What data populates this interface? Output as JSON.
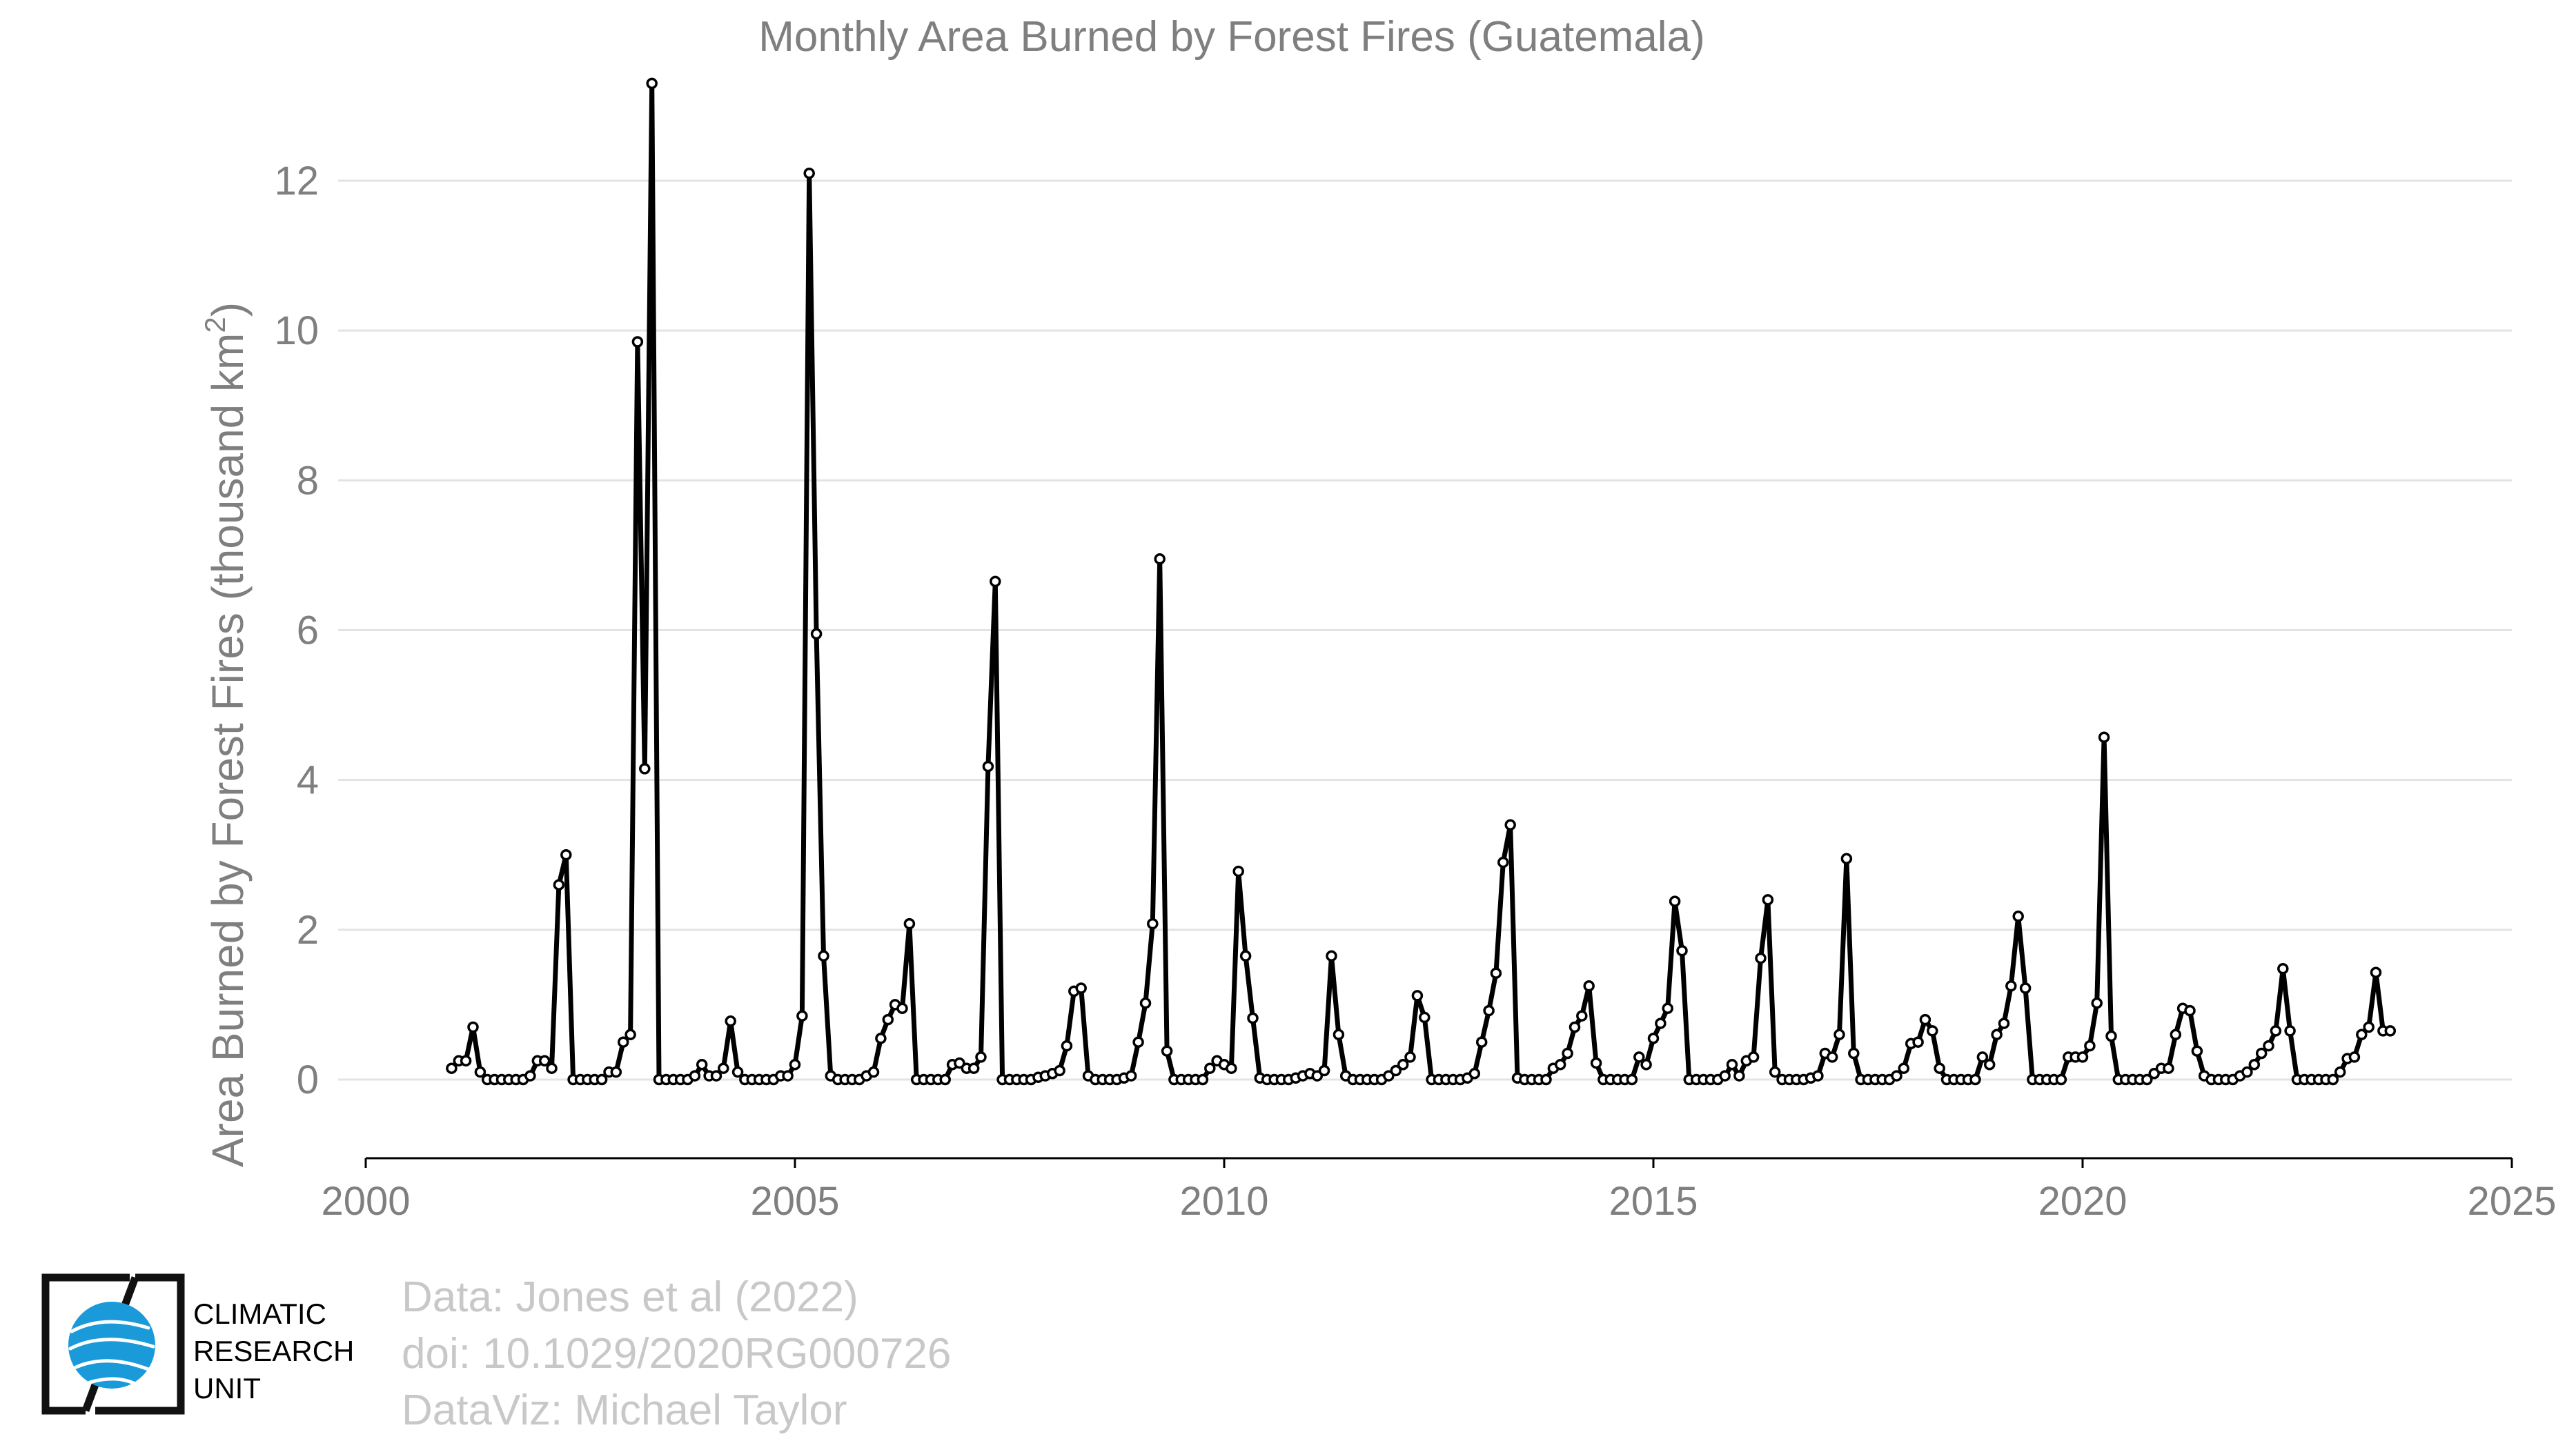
{
  "chart_data": {
    "type": "line",
    "title": "Monthly Area Burned by Forest Fires (Guatemala)",
    "ylabel": "Area Burned by Forest Fires (thousand km",
    "ylabel_superscript": "2",
    "ylabel_close": ")",
    "xlim": [
      2000,
      2025
    ],
    "ylim": [
      -1.05,
      13.4
    ],
    "xticks": [
      2000,
      2005,
      2010,
      2015,
      2020,
      2025
    ],
    "yticks": [
      0,
      2,
      4,
      6,
      8,
      10,
      12
    ],
    "grid": "horizontal",
    "series_color": "#000000",
    "marker_fill": "#ffffff",
    "x_start": "2001-01",
    "x_step": "monthly",
    "values": [
      0.15,
      0.25,
      0.25,
      0.7,
      0.1,
      0.0,
      0.0,
      0.0,
      0.0,
      0.0,
      0.0,
      0.05,
      0.25,
      0.25,
      0.15,
      2.6,
      3.0,
      0.0,
      0.0,
      0.0,
      0.0,
      0.0,
      0.1,
      0.1,
      0.5,
      0.6,
      9.85,
      4.15,
      13.3,
      0.0,
      0.0,
      0.0,
      0.0,
      0.0,
      0.05,
      0.2,
      0.05,
      0.05,
      0.15,
      0.78,
      0.1,
      0.0,
      0.0,
      0.0,
      0.0,
      0.0,
      0.05,
      0.05,
      0.2,
      0.85,
      12.1,
      5.95,
      1.65,
      0.05,
      0.0,
      0.0,
      0.0,
      0.0,
      0.05,
      0.1,
      0.55,
      0.8,
      1.0,
      0.95,
      2.08,
      0.0,
      0.0,
      0.0,
      0.0,
      0.0,
      0.2,
      0.22,
      0.15,
      0.15,
      0.3,
      4.18,
      6.65,
      0.0,
      0.0,
      0.0,
      0.0,
      0.0,
      0.03,
      0.05,
      0.08,
      0.12,
      0.45,
      1.18,
      1.22,
      0.05,
      0.0,
      0.0,
      0.0,
      0.0,
      0.02,
      0.05,
      0.5,
      1.02,
      2.08,
      6.95,
      0.38,
      0.0,
      0.0,
      0.0,
      0.0,
      0.0,
      0.15,
      0.25,
      0.2,
      0.15,
      2.78,
      1.65,
      0.82,
      0.02,
      0.0,
      0.0,
      0.0,
      0.0,
      0.02,
      0.05,
      0.08,
      0.05,
      0.12,
      1.65,
      0.6,
      0.05,
      0.0,
      0.0,
      0.0,
      0.0,
      0.0,
      0.05,
      0.12,
      0.2,
      0.3,
      1.12,
      0.83,
      0.0,
      0.0,
      0.0,
      0.0,
      0.0,
      0.02,
      0.08,
      0.5,
      0.92,
      1.42,
      2.9,
      3.4,
      0.02,
      0.0,
      0.0,
      0.0,
      0.0,
      0.15,
      0.2,
      0.35,
      0.7,
      0.85,
      1.25,
      0.22,
      0.0,
      0.0,
      0.0,
      0.0,
      0.0,
      0.3,
      0.2,
      0.55,
      0.75,
      0.95,
      2.38,
      1.72,
      0.0,
      0.0,
      0.0,
      0.0,
      0.0,
      0.05,
      0.2,
      0.05,
      0.25,
      0.3,
      1.62,
      2.4,
      0.1,
      0.0,
      0.0,
      0.0,
      0.0,
      0.02,
      0.05,
      0.35,
      0.3,
      0.6,
      2.95,
      0.35,
      0.0,
      0.0,
      0.0,
      0.0,
      0.0,
      0.05,
      0.15,
      0.48,
      0.5,
      0.8,
      0.65,
      0.15,
      0.0,
      0.0,
      0.0,
      0.0,
      0.0,
      0.3,
      0.2,
      0.6,
      0.75,
      1.25,
      2.18,
      1.22,
      0.0,
      0.0,
      0.0,
      0.0,
      0.0,
      0.3,
      0.3,
      0.3,
      0.45,
      1.02,
      4.57,
      0.58,
      0.0,
      0.0,
      0.0,
      0.0,
      0.0,
      0.08,
      0.15,
      0.15,
      0.6,
      0.95,
      0.92,
      0.38,
      0.05,
      0.0,
      0.0,
      0.0,
      0.0,
      0.05,
      0.1,
      0.2,
      0.35,
      0.45,
      0.65,
      1.48,
      0.65,
      0.0,
      0.0,
      0.0,
      0.0,
      0.0,
      0.0,
      0.1,
      0.28,
      0.3,
      0.6,
      0.7,
      1.43,
      0.65,
      0.65
    ]
  },
  "credits": {
    "line1": "Data: Jones et al (2022)",
    "line2": "doi: 10.1029/2020RG000726",
    "line3": "DataViz: Michael Taylor"
  },
  "logo": {
    "line1": "CLIMATIC",
    "line2": "RESEARCH",
    "line3": "UNIT",
    "globe_color": "#1a9ad9"
  }
}
